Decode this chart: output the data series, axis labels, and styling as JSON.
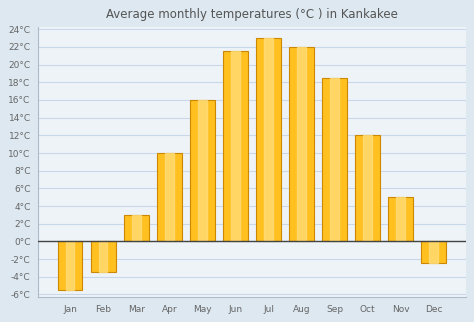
{
  "title": "Average monthly temperatures (°C ) in Kankakee",
  "months": [
    "Jan",
    "Feb",
    "Mar",
    "Apr",
    "May",
    "Jun",
    "Jul",
    "Aug",
    "Sep",
    "Oct",
    "Nov",
    "Dec"
  ],
  "values": [
    -5.5,
    -3.5,
    3.0,
    10.0,
    16.0,
    21.5,
    23.0,
    22.0,
    18.5,
    12.0,
    5.0,
    -2.5
  ],
  "bar_color": "#FFC020",
  "bar_edge_color": "#CC8800",
  "bar_highlight": "#FFE080",
  "ylim_min": -6,
  "ylim_max": 24,
  "yticks": [
    -6,
    -4,
    -2,
    0,
    2,
    4,
    6,
    8,
    10,
    12,
    14,
    16,
    18,
    20,
    22,
    24
  ],
  "background_color": "#dde8f0",
  "plot_bg_color": "#eef3f8",
  "grid_color": "#c8d8e8",
  "title_fontsize": 8.5,
  "tick_fontsize": 6.5,
  "zero_line_color": "#444444",
  "bar_width": 0.75,
  "title_color": "#555555",
  "tick_color": "#666666"
}
